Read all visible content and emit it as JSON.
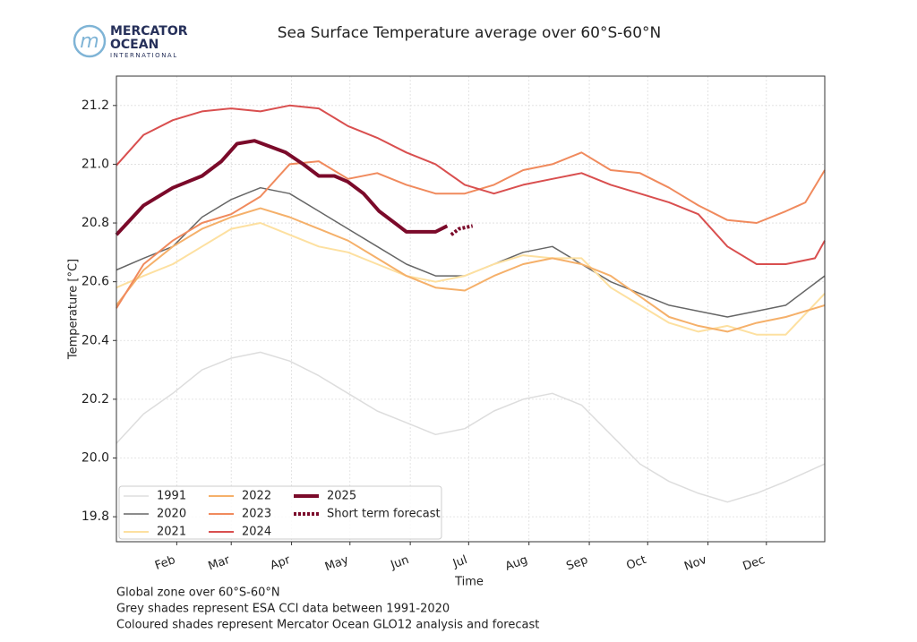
{
  "logo": {
    "line1": "MERCATOR",
    "line2": "OCEAN",
    "line3": "INTERNATIONAL"
  },
  "chart_data": {
    "type": "line",
    "title": "Sea Surface Temperature average over 60°S-60°N",
    "xlabel": "Time",
    "ylabel": "Temperature [°C]",
    "xlim": [
      1,
      365
    ],
    "xticks": [
      {
        "value": 32,
        "label": "Feb"
      },
      {
        "value": 60,
        "label": "Mar"
      },
      {
        "value": 91,
        "label": "Apr"
      },
      {
        "value": 121,
        "label": "May"
      },
      {
        "value": 152,
        "label": "Jun"
      },
      {
        "value": 182,
        "label": "Jul"
      },
      {
        "value": 213,
        "label": "Aug"
      },
      {
        "value": 244,
        "label": "Sep"
      },
      {
        "value": 274,
        "label": "Oct"
      },
      {
        "value": 305,
        "label": "Nov"
      },
      {
        "value": 335,
        "label": "Dec"
      }
    ],
    "ylim": [
      19.715,
      21.3
    ],
    "yticks": [
      {
        "value": 19.8,
        "label": "19.8"
      },
      {
        "value": 20.0,
        "label": "20.0"
      },
      {
        "value": 20.2,
        "label": "20.2"
      },
      {
        "value": 20.4,
        "label": "20.4"
      },
      {
        "value": 20.6,
        "label": "20.6"
      },
      {
        "value": 20.8,
        "label": "20.8"
      },
      {
        "value": 21.0,
        "label": "21.0"
      },
      {
        "value": 21.2,
        "label": "21.2"
      }
    ],
    "grid": true,
    "legend": "lower left",
    "series": [
      {
        "name": "1991",
        "color": "#dddddd",
        "linewidth": 1.5,
        "x": [
          1,
          15,
          30,
          45,
          60,
          75,
          90,
          105,
          120,
          135,
          150,
          165,
          180,
          195,
          210,
          225,
          240,
          255,
          270,
          285,
          300,
          315,
          330,
          345,
          365
        ],
        "values": [
          20.05,
          20.15,
          20.22,
          20.3,
          20.34,
          20.36,
          20.33,
          20.28,
          20.22,
          20.16,
          20.12,
          20.08,
          20.1,
          20.16,
          20.2,
          20.22,
          20.18,
          20.08,
          19.98,
          19.92,
          19.88,
          19.85,
          19.88,
          19.92,
          19.98
        ]
      },
      {
        "name": "2020",
        "color": "#666666",
        "linewidth": 1.5,
        "x": [
          1,
          15,
          30,
          45,
          60,
          75,
          90,
          105,
          120,
          135,
          150,
          165,
          180,
          195,
          210,
          225,
          240,
          255,
          270,
          285,
          300,
          315,
          330,
          345,
          365
        ],
        "values": [
          20.64,
          20.68,
          20.72,
          20.82,
          20.88,
          20.92,
          20.9,
          20.84,
          20.78,
          20.72,
          20.66,
          20.62,
          20.62,
          20.66,
          20.7,
          20.72,
          20.66,
          20.6,
          20.56,
          20.52,
          20.5,
          20.48,
          20.5,
          20.52,
          20.62
        ]
      },
      {
        "name": "2021",
        "color": "#fde0a0",
        "linewidth": 2,
        "x": [
          1,
          15,
          30,
          45,
          60,
          75,
          90,
          105,
          120,
          135,
          150,
          165,
          180,
          195,
          210,
          225,
          240,
          255,
          270,
          285,
          300,
          315,
          330,
          345,
          365
        ],
        "values": [
          20.58,
          20.62,
          20.66,
          20.72,
          20.78,
          20.8,
          20.76,
          20.72,
          20.7,
          20.66,
          20.62,
          20.6,
          20.62,
          20.66,
          20.69,
          20.68,
          20.68,
          20.58,
          20.52,
          20.46,
          20.43,
          20.45,
          20.42,
          20.42,
          20.56
        ]
      },
      {
        "name": "2022",
        "color": "#f5b06a",
        "linewidth": 2,
        "x": [
          1,
          15,
          30,
          45,
          60,
          75,
          90,
          105,
          120,
          135,
          150,
          165,
          180,
          195,
          210,
          225,
          240,
          255,
          270,
          285,
          300,
          315,
          330,
          345,
          365
        ],
        "values": [
          20.52,
          20.64,
          20.72,
          20.78,
          20.82,
          20.85,
          20.82,
          20.78,
          20.74,
          20.68,
          20.62,
          20.58,
          20.57,
          20.62,
          20.66,
          20.68,
          20.66,
          20.62,
          20.55,
          20.48,
          20.45,
          20.43,
          20.46,
          20.48,
          20.52
        ]
      },
      {
        "name": "2023",
        "color": "#f08a5d",
        "linewidth": 2,
        "x": [
          1,
          15,
          30,
          45,
          60,
          75,
          90,
          105,
          120,
          135,
          150,
          165,
          180,
          195,
          210,
          225,
          240,
          255,
          270,
          285,
          300,
          315,
          330,
          345,
          355,
          365
        ],
        "values": [
          20.51,
          20.66,
          20.74,
          20.8,
          20.83,
          20.89,
          21.0,
          21.01,
          20.95,
          20.97,
          20.93,
          20.9,
          20.9,
          20.93,
          20.98,
          21.0,
          21.04,
          20.98,
          20.97,
          20.92,
          20.86,
          20.81,
          20.8,
          20.84,
          20.87,
          20.98
        ]
      },
      {
        "name": "2024",
        "color": "#d94f4f",
        "linewidth": 2,
        "x": [
          1,
          15,
          30,
          45,
          60,
          75,
          90,
          105,
          120,
          135,
          150,
          165,
          180,
          195,
          210,
          225,
          240,
          255,
          270,
          285,
          300,
          315,
          330,
          345,
          360,
          365
        ],
        "values": [
          20.996,
          21.1,
          21.15,
          21.18,
          21.19,
          21.18,
          21.2,
          21.19,
          21.13,
          21.09,
          21.04,
          21.0,
          20.93,
          20.9,
          20.93,
          20.95,
          20.97,
          20.93,
          20.9,
          20.87,
          20.83,
          20.72,
          20.66,
          20.66,
          20.68,
          20.74
        ]
      },
      {
        "name": "2025",
        "color": "#7b0a2a",
        "linewidth": 4,
        "x": [
          1,
          15,
          30,
          45,
          55,
          63,
          72,
          80,
          88,
          97,
          105,
          113,
          120,
          128,
          136,
          144,
          150,
          158,
          165,
          171
        ],
        "values": [
          20.76,
          20.86,
          20.92,
          20.96,
          21.01,
          21.07,
          21.08,
          21.06,
          21.04,
          21.0,
          20.96,
          20.96,
          20.94,
          20.9,
          20.84,
          20.8,
          20.77,
          20.77,
          20.77,
          20.79
        ]
      },
      {
        "name": "Short term forecast",
        "color": "#7b0a2a",
        "linewidth": 4,
        "style": "dotted",
        "x": [
          173,
          177,
          184
        ],
        "values": [
          20.76,
          20.78,
          20.79
        ]
      }
    ],
    "notes": [
      "Global zone over 60°S-60°N",
      "Grey shades represent ESA CCI data between 1991-2020",
      "Coloured shades represent Mercator Ocean GLO12 analysis and forecast"
    ]
  }
}
